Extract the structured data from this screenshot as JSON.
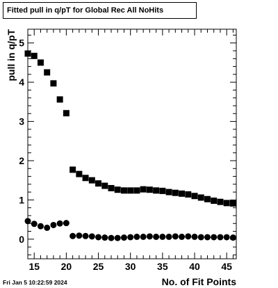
{
  "title": "Fitted pull in q/pT for Global Rec All NoHits",
  "timestamp": "Fri Jan  5 10:22:59 2024",
  "chart_data": {
    "type": "scatter",
    "title": "Fitted pull in q/pT for Global Rec All NoHits",
    "xlabel": "No. of Fit Points",
    "ylabel": "pull in q/pT",
    "xlim": [
      14,
      46.5
    ],
    "ylim": [
      -0.5,
      5.35
    ],
    "xticks": [
      15,
      20,
      25,
      30,
      35,
      40,
      45
    ],
    "yticks": [
      0,
      1,
      2,
      3,
      4,
      5
    ],
    "grid": false,
    "series": [
      {
        "marker": "square",
        "x": [
          14,
          15,
          16,
          17,
          18,
          19,
          20,
          21,
          22,
          23,
          24,
          25,
          26,
          27,
          28,
          29,
          30,
          31,
          32,
          33,
          34,
          35,
          36,
          37,
          38,
          39,
          40,
          41,
          42,
          43,
          44,
          45,
          46
        ],
        "y": [
          4.73,
          4.67,
          4.5,
          4.25,
          3.97,
          3.56,
          3.21,
          1.77,
          1.66,
          1.56,
          1.5,
          1.42,
          1.36,
          1.3,
          1.26,
          1.24,
          1.24,
          1.24,
          1.27,
          1.26,
          1.24,
          1.23,
          1.2,
          1.18,
          1.16,
          1.14,
          1.1,
          1.06,
          1.02,
          0.98,
          0.95,
          0.92,
          0.91
        ]
      },
      {
        "marker": "circle",
        "x": [
          14,
          15,
          16,
          17,
          18,
          19,
          20,
          21,
          22,
          23,
          24,
          25,
          26,
          27,
          28,
          29,
          30,
          31,
          32,
          33,
          34,
          35,
          36,
          37,
          38,
          39,
          40,
          41,
          42,
          43,
          44,
          45,
          46
        ],
        "y": [
          0.46,
          0.39,
          0.33,
          0.29,
          0.36,
          0.4,
          0.41,
          0.08,
          0.09,
          0.08,
          0.07,
          0.05,
          0.04,
          0.03,
          0.03,
          0.04,
          0.05,
          0.06,
          0.06,
          0.07,
          0.06,
          0.06,
          0.06,
          0.07,
          0.06,
          0.07,
          0.06,
          0.05,
          0.05,
          0.05,
          0.05,
          0.05,
          0.04
        ]
      }
    ]
  }
}
